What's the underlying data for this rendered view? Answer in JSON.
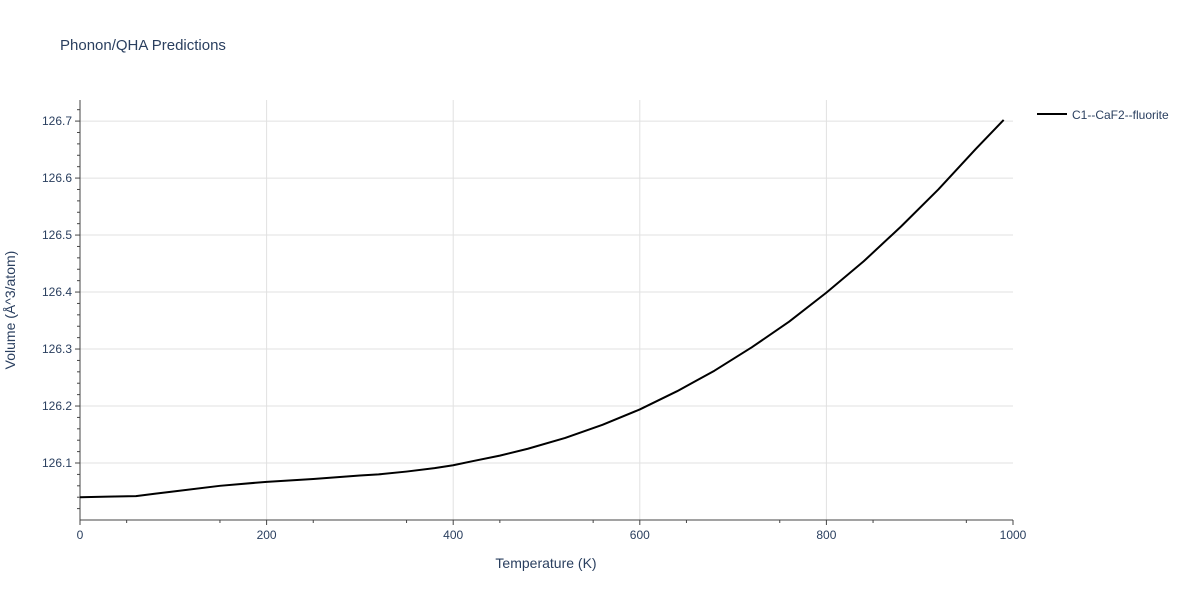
{
  "chart_data": {
    "type": "line",
    "title": "Phonon/QHA Predictions",
    "xlabel": "Temperature (K)",
    "ylabel": "Volume (Å^3/atom)",
    "xlim": [
      0,
      1000
    ],
    "ylim": [
      126.0,
      126.737
    ],
    "x_ticks": [
      "0",
      "200",
      "400",
      "600",
      "800",
      "1000"
    ],
    "x_tick_values": [
      0,
      200,
      400,
      600,
      800,
      1000
    ],
    "y_ticks": [
      "126.1",
      "126.2",
      "126.3",
      "126.4",
      "126.5",
      "126.6",
      "126.7"
    ],
    "y_tick_values": [
      126.1,
      126.2,
      126.3,
      126.4,
      126.5,
      126.6,
      126.7
    ],
    "grid": true,
    "legend_position": "top-right",
    "series": [
      {
        "name": "C1--CaF2--fluorite",
        "color": "#000000",
        "x": [
          0,
          30,
          60,
          80,
          100,
          150,
          200,
          250,
          300,
          320,
          350,
          380,
          400,
          420,
          450,
          480,
          520,
          560,
          600,
          640,
          680,
          720,
          760,
          800,
          840,
          880,
          920,
          960,
          990
        ],
        "y": [
          126.04,
          126.041,
          126.042,
          126.046,
          126.05,
          126.06,
          126.067,
          126.072,
          126.078,
          126.08,
          126.085,
          126.091,
          126.096,
          126.103,
          126.113,
          126.125,
          126.144,
          126.167,
          126.194,
          126.226,
          126.262,
          126.303,
          126.348,
          126.399,
          126.454,
          126.515,
          126.58,
          126.651,
          126.702
        ]
      }
    ]
  }
}
